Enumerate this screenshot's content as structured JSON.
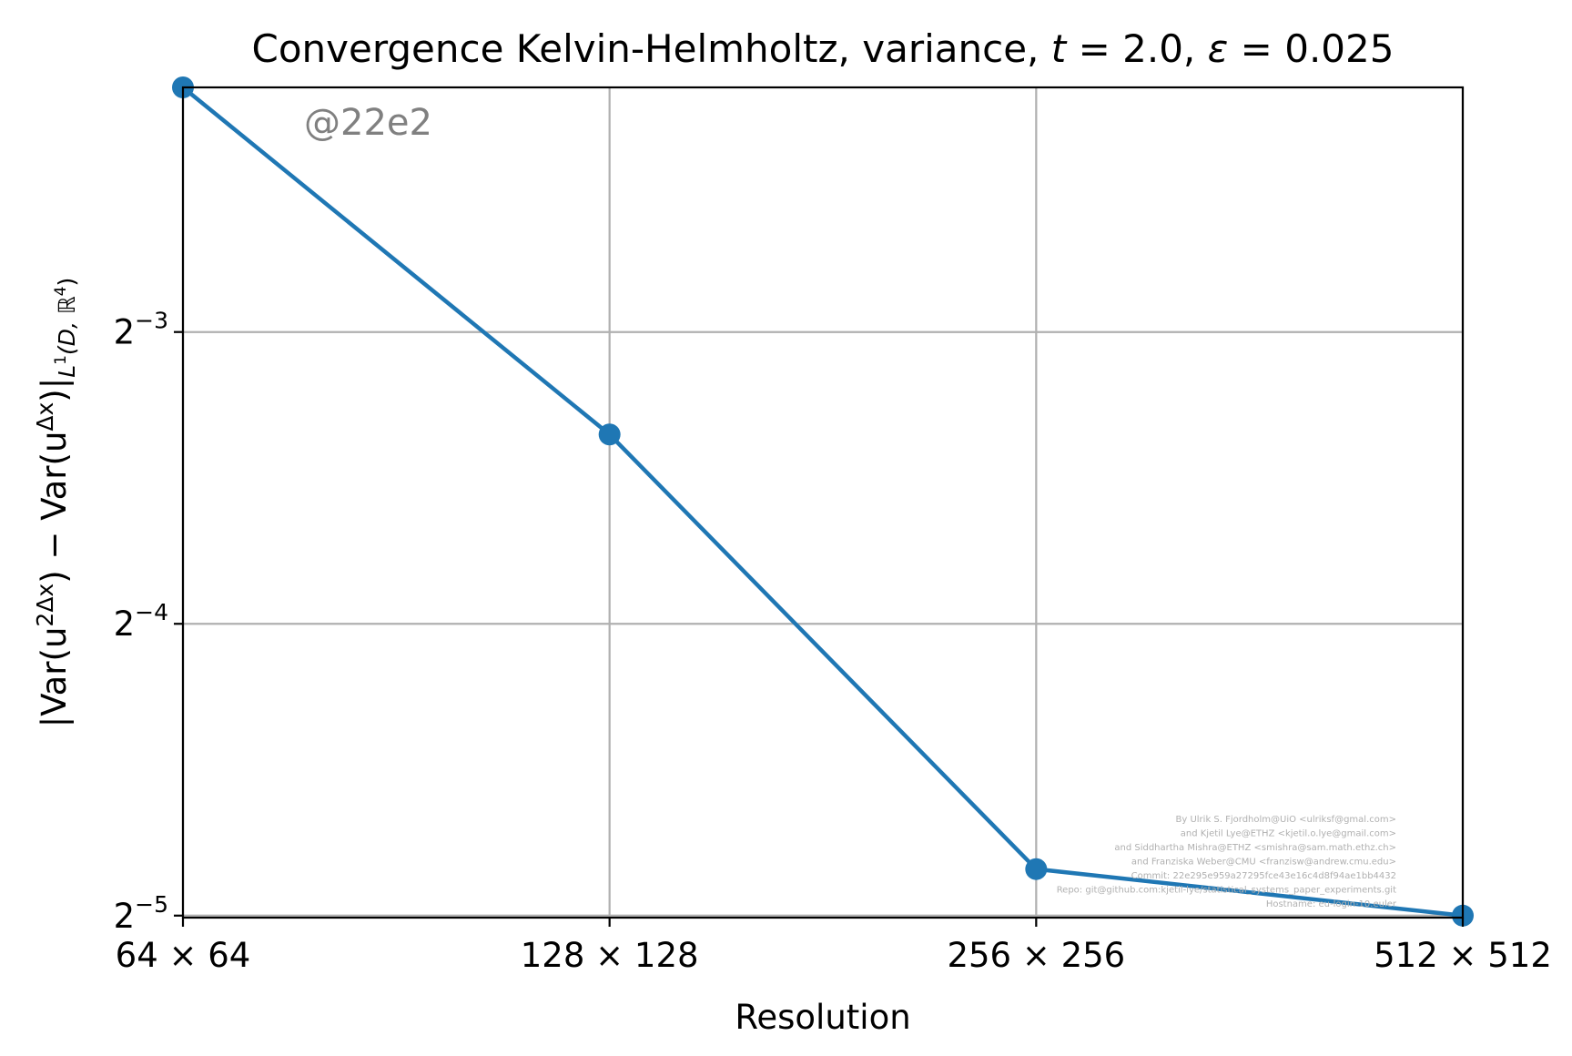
{
  "colors": {
    "series": "#1f77b4",
    "grid": "#b0b0b0",
    "watermark": "#808080",
    "credits": "#b0b0b0"
  },
  "chart_data": {
    "type": "line",
    "title_parts": [
      "Convergence Kelvin-Helmholtz, variance, ",
      "t",
      " = 2.0, ",
      "ε",
      " = 0.025"
    ],
    "xlabel": "Resolution",
    "ylabel_parts": [
      "|Var(u",
      "2Δx",
      ") − Var(u",
      "Δx",
      ")|",
      "L",
      "1",
      "(D, ℝ",
      "4",
      ")"
    ],
    "x_scale": "log2",
    "y_scale": "log2",
    "categories": [
      "64 × 64",
      "128 × 128",
      "256 × 256",
      "512 × 512"
    ],
    "x": [
      64,
      128,
      256,
      512
    ],
    "series": [
      {
        "values": [
          0.2235,
          0.098,
          0.0349,
          0.03125
        ],
        "marker": "circle"
      }
    ],
    "yticks": [
      {
        "base": "2",
        "exp": "−3",
        "value": 0.125
      },
      {
        "base": "2",
        "exp": "−4",
        "value": 0.0625
      },
      {
        "base": "2",
        "exp": "−5",
        "value": 0.03125
      }
    ],
    "ylim": [
      0.0311,
      0.2235
    ],
    "xlim": [
      64,
      512
    ],
    "grid": true,
    "watermark": "@22e2",
    "credits": [
      "By Ulrik S. Fjordholm@UiO <ulriksf@gmal.com>",
      "and Kjetil Lye@ETHZ <kjetil.o.lye@gmail.com>",
      "and Siddhartha Mishra@ETHZ <smishra@sam.math.ethz.ch>",
      "and Franziska Weber@CMU <franzisw@andrew.cmu.edu>",
      "Commit: 22e295e959a27295fce43e16c4d8f94ae1bb4432",
      "Repo: git@github.com:kjetil-lye/statistical_systems_paper_experiments.git",
      "Hostname: eu-login-10.euler"
    ]
  }
}
